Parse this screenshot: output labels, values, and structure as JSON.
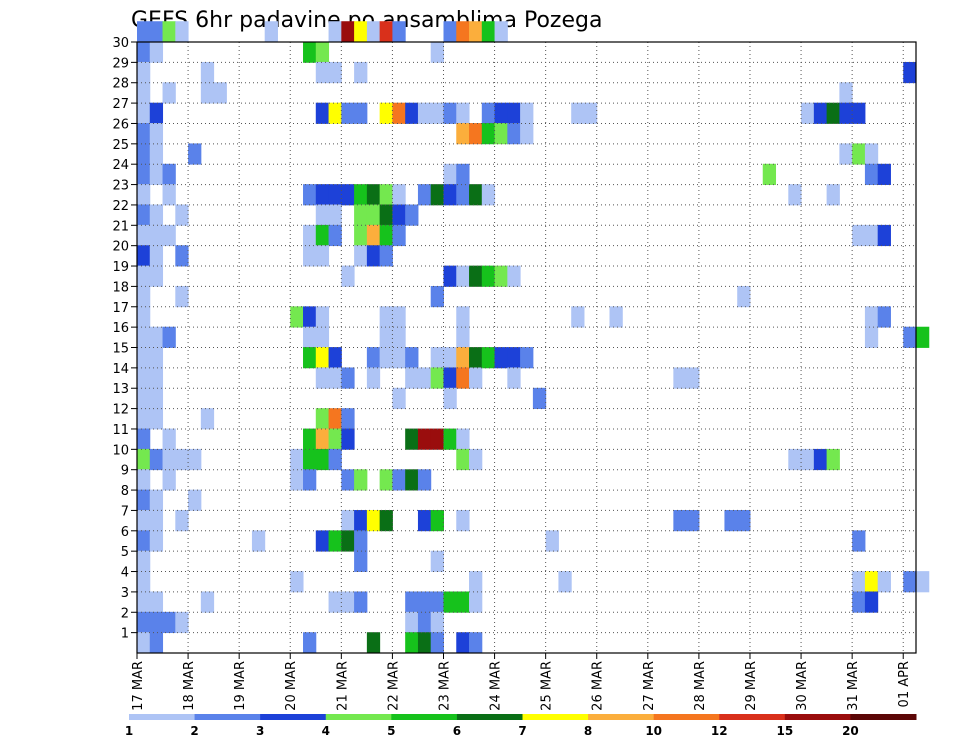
{
  "chart_data": {
    "type": "heatmap",
    "title": "GEFS 6hr padavine po ansamblima Pozega",
    "xlabel": "",
    "ylabel": "",
    "y_ticks": [
      "1",
      "2",
      "3",
      "4",
      "5",
      "6",
      "7",
      "8",
      "9",
      "10",
      "11",
      "12",
      "13",
      "14",
      "15",
      "16",
      "17",
      "18",
      "19",
      "20",
      "21",
      "22",
      "23",
      "24",
      "25",
      "26",
      "27",
      "28",
      "29",
      "30"
    ],
    "x_ticks": [
      "17 MAR",
      "18 MAR",
      "19 MAR",
      "20 MAR",
      "21 MAR",
      "22 MAR",
      "23 MAR",
      "24 MAR",
      "25 MAR",
      "26 MAR",
      "27 MAR",
      "28 MAR",
      "29 MAR",
      "30 MAR",
      "31 MAR",
      "01 APR"
    ],
    "ylim": [
      0,
      30
    ],
    "xlim_steps_6h": [
      0,
      61
    ],
    "grid": true,
    "colorbar": {
      "levels": [
        "1",
        "2",
        "3",
        "4",
        "5",
        "6",
        "7",
        "8",
        "10",
        "12",
        "15",
        "20"
      ],
      "colors": [
        "#aec4f5",
        "#5a82ea",
        "#1d41d8",
        "#74e84f",
        "#16c21c",
        "#0a6f16",
        "#ffff00",
        "#fbae3c",
        "#f5761f",
        "#d9301b",
        "#9a0d0d",
        "#5c0606"
      ]
    },
    "cells": [
      [
        0,
        30,
        2
      ],
      [
        1,
        30,
        2
      ],
      [
        2,
        30,
        4
      ],
      [
        3,
        30,
        1
      ],
      [
        10,
        30,
        1
      ],
      [
        15,
        30,
        1
      ],
      [
        16,
        30,
        11
      ],
      [
        17,
        30,
        7
      ],
      [
        18,
        30,
        1
      ],
      [
        19,
        30,
        10
      ],
      [
        20,
        30,
        2
      ],
      [
        24,
        30,
        2
      ],
      [
        25,
        30,
        9
      ],
      [
        26,
        30,
        8
      ],
      [
        27,
        30,
        5
      ],
      [
        28,
        30,
        1
      ],
      [
        0,
        29,
        2
      ],
      [
        1,
        29,
        1
      ],
      [
        13,
        29,
        5
      ],
      [
        14,
        29,
        4
      ],
      [
        23,
        29,
        1
      ],
      [
        0,
        28,
        1
      ],
      [
        5,
        28,
        1
      ],
      [
        14,
        28,
        1
      ],
      [
        15,
        28,
        1
      ],
      [
        17,
        28,
        1
      ],
      [
        60,
        28,
        3
      ],
      [
        0,
        27,
        1
      ],
      [
        2,
        27,
        1
      ],
      [
        5,
        27,
        1
      ],
      [
        6,
        27,
        1
      ],
      [
        55,
        27,
        1
      ],
      [
        0,
        26,
        1
      ],
      [
        1,
        26,
        3
      ],
      [
        14,
        26,
        3
      ],
      [
        15,
        26,
        7
      ],
      [
        16,
        26,
        2
      ],
      [
        17,
        26,
        2
      ],
      [
        19,
        26,
        7
      ],
      [
        20,
        26,
        9
      ],
      [
        21,
        26,
        3
      ],
      [
        22,
        26,
        1
      ],
      [
        23,
        26,
        1
      ],
      [
        24,
        26,
        2
      ],
      [
        25,
        26,
        1
      ],
      [
        27,
        26,
        2
      ],
      [
        28,
        26,
        3
      ],
      [
        29,
        26,
        3
      ],
      [
        30,
        26,
        1
      ],
      [
        34,
        26,
        1
      ],
      [
        35,
        26,
        1
      ],
      [
        52,
        26,
        1
      ],
      [
        53,
        26,
        3
      ],
      [
        54,
        26,
        6
      ],
      [
        55,
        26,
        3
      ],
      [
        56,
        26,
        3
      ],
      [
        0,
        25,
        2
      ],
      [
        1,
        25,
        1
      ],
      [
        25,
        25,
        8
      ],
      [
        26,
        25,
        9
      ],
      [
        27,
        25,
        5
      ],
      [
        28,
        25,
        4
      ],
      [
        29,
        25,
        2
      ],
      [
        30,
        25,
        1
      ],
      [
        0,
        24,
        2
      ],
      [
        1,
        24,
        1
      ],
      [
        4,
        24,
        2
      ],
      [
        55,
        24,
        1
      ],
      [
        56,
        24,
        4
      ],
      [
        57,
        24,
        1
      ],
      [
        0,
        23,
        2
      ],
      [
        1,
        23,
        1
      ],
      [
        2,
        23,
        2
      ],
      [
        24,
        23,
        1
      ],
      [
        25,
        23,
        2
      ],
      [
        49,
        23,
        4
      ],
      [
        57,
        23,
        2
      ],
      [
        58,
        23,
        3
      ],
      [
        0,
        22,
        1
      ],
      [
        2,
        22,
        1
      ],
      [
        13,
        22,
        2
      ],
      [
        14,
        22,
        3
      ],
      [
        15,
        22,
        3
      ],
      [
        16,
        22,
        3
      ],
      [
        17,
        22,
        5
      ],
      [
        18,
        22,
        6
      ],
      [
        19,
        22,
        4
      ],
      [
        20,
        22,
        1
      ],
      [
        22,
        22,
        2
      ],
      [
        23,
        22,
        6
      ],
      [
        24,
        22,
        3
      ],
      [
        25,
        22,
        2
      ],
      [
        26,
        22,
        6
      ],
      [
        27,
        22,
        1
      ],
      [
        51,
        22,
        1
      ],
      [
        54,
        22,
        1
      ],
      [
        0,
        21,
        2
      ],
      [
        1,
        21,
        1
      ],
      [
        3,
        21,
        1
      ],
      [
        14,
        21,
        1
      ],
      [
        15,
        21,
        1
      ],
      [
        17,
        21,
        4
      ],
      [
        18,
        21,
        4
      ],
      [
        19,
        21,
        6
      ],
      [
        20,
        21,
        3
      ],
      [
        21,
        21,
        2
      ],
      [
        0,
        20,
        1
      ],
      [
        1,
        20,
        1
      ],
      [
        2,
        20,
        1
      ],
      [
        13,
        20,
        1
      ],
      [
        14,
        20,
        5
      ],
      [
        15,
        20,
        2
      ],
      [
        17,
        20,
        4
      ],
      [
        18,
        20,
        8
      ],
      [
        19,
        20,
        5
      ],
      [
        20,
        20,
        2
      ],
      [
        56,
        20,
        1
      ],
      [
        57,
        20,
        1
      ],
      [
        58,
        20,
        3
      ],
      [
        0,
        19,
        3
      ],
      [
        1,
        19,
        1
      ],
      [
        3,
        19,
        2
      ],
      [
        13,
        19,
        1
      ],
      [
        14,
        19,
        1
      ],
      [
        17,
        19,
        1
      ],
      [
        18,
        19,
        3
      ],
      [
        19,
        19,
        2
      ],
      [
        0,
        18,
        1
      ],
      [
        1,
        18,
        1
      ],
      [
        16,
        18,
        1
      ],
      [
        24,
        18,
        3
      ],
      [
        25,
        18,
        1
      ],
      [
        26,
        18,
        6
      ],
      [
        27,
        18,
        5
      ],
      [
        28,
        18,
        4
      ],
      [
        29,
        18,
        1
      ],
      [
        0,
        17,
        1
      ],
      [
        3,
        17,
        1
      ],
      [
        23,
        17,
        2
      ],
      [
        47,
        17,
        1
      ],
      [
        0,
        16,
        1
      ],
      [
        12,
        16,
        4
      ],
      [
        13,
        16,
        3
      ],
      [
        14,
        16,
        1
      ],
      [
        19,
        16,
        1
      ],
      [
        20,
        16,
        1
      ],
      [
        25,
        16,
        1
      ],
      [
        34,
        16,
        1
      ],
      [
        37,
        16,
        1
      ],
      [
        57,
        16,
        1
      ],
      [
        58,
        16,
        2
      ],
      [
        0,
        15,
        1
      ],
      [
        1,
        15,
        1
      ],
      [
        2,
        15,
        2
      ],
      [
        13,
        15,
        1
      ],
      [
        14,
        15,
        1
      ],
      [
        19,
        15,
        1
      ],
      [
        20,
        15,
        1
      ],
      [
        25,
        15,
        1
      ],
      [
        57,
        15,
        1
      ],
      [
        60,
        15,
        2
      ],
      [
        61,
        15,
        5
      ],
      [
        0,
        14,
        1
      ],
      [
        1,
        14,
        1
      ],
      [
        13,
        14,
        5
      ],
      [
        14,
        14,
        7
      ],
      [
        15,
        14,
        3
      ],
      [
        18,
        14,
        2
      ],
      [
        19,
        14,
        1
      ],
      [
        20,
        14,
        1
      ],
      [
        21,
        14,
        2
      ],
      [
        23,
        14,
        1
      ],
      [
        24,
        14,
        1
      ],
      [
        25,
        14,
        8
      ],
      [
        26,
        14,
        6
      ],
      [
        27,
        14,
        5
      ],
      [
        28,
        14,
        3
      ],
      [
        29,
        14,
        3
      ],
      [
        30,
        14,
        2
      ],
      [
        0,
        13,
        1
      ],
      [
        1,
        13,
        1
      ],
      [
        14,
        13,
        1
      ],
      [
        15,
        13,
        1
      ],
      [
        16,
        13,
        2
      ],
      [
        18,
        13,
        1
      ],
      [
        21,
        13,
        1
      ],
      [
        22,
        13,
        1
      ],
      [
        23,
        13,
        4
      ],
      [
        24,
        13,
        3
      ],
      [
        25,
        13,
        9
      ],
      [
        26,
        13,
        1
      ],
      [
        29,
        13,
        1
      ],
      [
        42,
        13,
        1
      ],
      [
        43,
        13,
        1
      ],
      [
        0,
        12,
        1
      ],
      [
        1,
        12,
        1
      ],
      [
        20,
        12,
        1
      ],
      [
        24,
        12,
        1
      ],
      [
        31,
        12,
        2
      ],
      [
        0,
        11,
        1
      ],
      [
        1,
        11,
        1
      ],
      [
        5,
        11,
        1
      ],
      [
        14,
        11,
        4
      ],
      [
        15,
        11,
        9
      ],
      [
        16,
        11,
        2
      ],
      [
        0,
        10,
        2
      ],
      [
        2,
        10,
        1
      ],
      [
        13,
        10,
        5
      ],
      [
        14,
        10,
        8
      ],
      [
        15,
        10,
        4
      ],
      [
        16,
        10,
        3
      ],
      [
        21,
        10,
        6
      ],
      [
        22,
        10,
        11
      ],
      [
        23,
        10,
        11
      ],
      [
        24,
        10,
        5
      ],
      [
        25,
        10,
        1
      ],
      [
        0,
        9,
        4
      ],
      [
        1,
        9,
        2
      ],
      [
        2,
        9,
        1
      ],
      [
        3,
        9,
        1
      ],
      [
        4,
        9,
        1
      ],
      [
        12,
        9,
        1
      ],
      [
        13,
        9,
        5
      ],
      [
        14,
        9,
        5
      ],
      [
        15,
        9,
        2
      ],
      [
        25,
        9,
        4
      ],
      [
        26,
        9,
        1
      ],
      [
        51,
        9,
        1
      ],
      [
        52,
        9,
        1
      ],
      [
        53,
        9,
        3
      ],
      [
        54,
        9,
        4
      ],
      [
        0,
        8,
        1
      ],
      [
        2,
        8,
        1
      ],
      [
        12,
        8,
        1
      ],
      [
        13,
        8,
        2
      ],
      [
        16,
        8,
        2
      ],
      [
        17,
        8,
        4
      ],
      [
        19,
        8,
        4
      ],
      [
        20,
        8,
        2
      ],
      [
        21,
        8,
        6
      ],
      [
        22,
        8,
        2
      ],
      [
        0,
        7,
        2
      ],
      [
        1,
        7,
        1
      ],
      [
        4,
        7,
        1
      ],
      [
        0,
        6,
        1
      ],
      [
        1,
        6,
        1
      ],
      [
        3,
        6,
        1
      ],
      [
        16,
        6,
        1
      ],
      [
        17,
        6,
        3
      ],
      [
        18,
        6,
        7
      ],
      [
        19,
        6,
        6
      ],
      [
        22,
        6,
        3
      ],
      [
        23,
        6,
        5
      ],
      [
        25,
        6,
        1
      ],
      [
        42,
        6,
        2
      ],
      [
        43,
        6,
        2
      ],
      [
        46,
        6,
        2
      ],
      [
        47,
        6,
        2
      ],
      [
        0,
        5,
        2
      ],
      [
        1,
        5,
        1
      ],
      [
        9,
        5,
        1
      ],
      [
        14,
        5,
        3
      ],
      [
        15,
        5,
        5
      ],
      [
        16,
        5,
        6
      ],
      [
        17,
        5,
        2
      ],
      [
        32,
        5,
        1
      ],
      [
        56,
        5,
        2
      ],
      [
        0,
        4,
        1
      ],
      [
        17,
        4,
        2
      ],
      [
        23,
        4,
        1
      ],
      [
        0,
        3,
        1
      ],
      [
        12,
        3,
        1
      ],
      [
        26,
        3,
        1
      ],
      [
        33,
        3,
        1
      ],
      [
        56,
        3,
        1
      ],
      [
        57,
        3,
        7
      ],
      [
        58,
        3,
        1
      ],
      [
        60,
        3,
        2
      ],
      [
        61,
        3,
        1
      ],
      [
        0,
        2,
        1
      ],
      [
        1,
        2,
        1
      ],
      [
        5,
        2,
        1
      ],
      [
        15,
        2,
        1
      ],
      [
        16,
        2,
        1
      ],
      [
        17,
        2,
        2
      ],
      [
        21,
        2,
        2
      ],
      [
        22,
        2,
        2
      ],
      [
        23,
        2,
        2
      ],
      [
        24,
        2,
        5
      ],
      [
        25,
        2,
        5
      ],
      [
        26,
        2,
        1
      ],
      [
        56,
        2,
        2
      ],
      [
        57,
        2,
        3
      ],
      [
        0,
        1,
        2
      ],
      [
        1,
        1,
        2
      ],
      [
        2,
        1,
        2
      ],
      [
        3,
        1,
        1
      ],
      [
        21,
        1,
        1
      ],
      [
        22,
        1,
        2
      ],
      [
        23,
        1,
        1
      ],
      [
        0,
        0,
        1
      ],
      [
        1,
        0,
        2
      ],
      [
        13,
        0,
        2
      ],
      [
        18,
        0,
        6
      ],
      [
        21,
        0,
        5
      ],
      [
        22,
        0,
        6
      ],
      [
        23,
        0,
        2
      ],
      [
        25,
        0,
        3
      ],
      [
        26,
        0,
        2
      ]
    ]
  }
}
